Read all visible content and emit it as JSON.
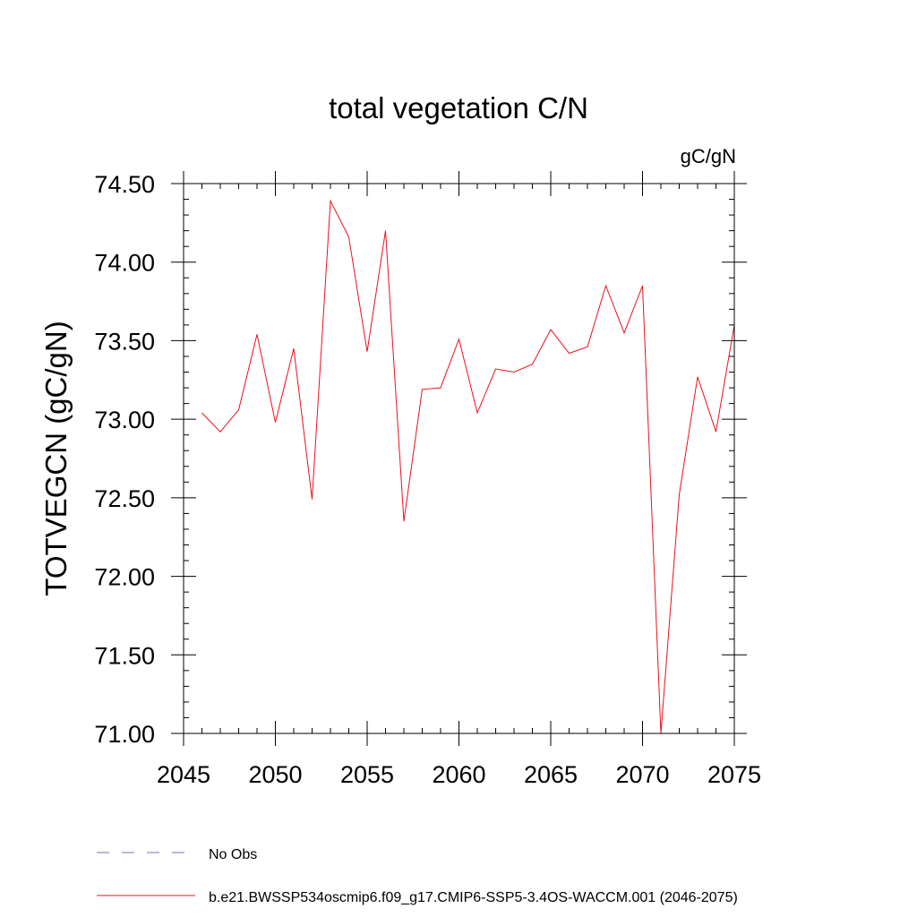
{
  "chart_data": {
    "type": "line",
    "title": "total vegetation C/N",
    "units_label": "gC/gN",
    "xlabel": "",
    "ylabel": "TOTVEGCN  (gC/gN)",
    "xlim": [
      2045,
      2075
    ],
    "ylim": [
      71.0,
      74.5
    ],
    "x_major_ticks": [
      2045,
      2050,
      2055,
      2060,
      2065,
      2070,
      2075
    ],
    "x_tick_labels": [
      "2045",
      "2050",
      "2055",
      "2060",
      "2065",
      "2070",
      "2075"
    ],
    "x_minor_step": 1,
    "y_major_ticks": [
      71.0,
      71.5,
      72.0,
      72.5,
      73.0,
      73.5,
      74.0,
      74.5
    ],
    "y_tick_labels": [
      "71.00",
      "71.50",
      "72.00",
      "72.50",
      "73.00",
      "73.50",
      "74.00",
      "74.50"
    ],
    "y_minor_step": 0.1,
    "series": [
      {
        "name": "b.e21.BWSSP534oscmip6.f09_g17.CMIP6-SSP5-3.4OS-WACCM.001 (2046-2075)",
        "color": "#e8111e",
        "x": [
          2046,
          2047,
          2048,
          2049,
          2050,
          2051,
          2052,
          2053,
          2054,
          2055,
          2056,
          2057,
          2058,
          2059,
          2060,
          2061,
          2062,
          2063,
          2064,
          2065,
          2066,
          2067,
          2068,
          2069,
          2070,
          2071,
          2072,
          2073,
          2074,
          2075
        ],
        "values": [
          73.04,
          72.92,
          73.06,
          73.54,
          72.98,
          73.45,
          72.49,
          74.39,
          74.16,
          73.43,
          74.2,
          72.35,
          73.19,
          73.2,
          73.51,
          73.04,
          73.32,
          73.3,
          73.35,
          73.57,
          73.42,
          73.46,
          73.85,
          73.55,
          73.85,
          71.0,
          72.52,
          73.27,
          72.92,
          73.6
        ]
      }
    ],
    "legend": [
      {
        "label": "No Obs",
        "style": "dashed",
        "color": "#7b6fb8"
      },
      {
        "label": "b.e21.BWSSP534oscmip6.f09_g17.CMIP6-SSP5-3.4OS-WACCM.001 (2046-2075)",
        "style": "solid",
        "color": "#e8111e"
      }
    ]
  }
}
